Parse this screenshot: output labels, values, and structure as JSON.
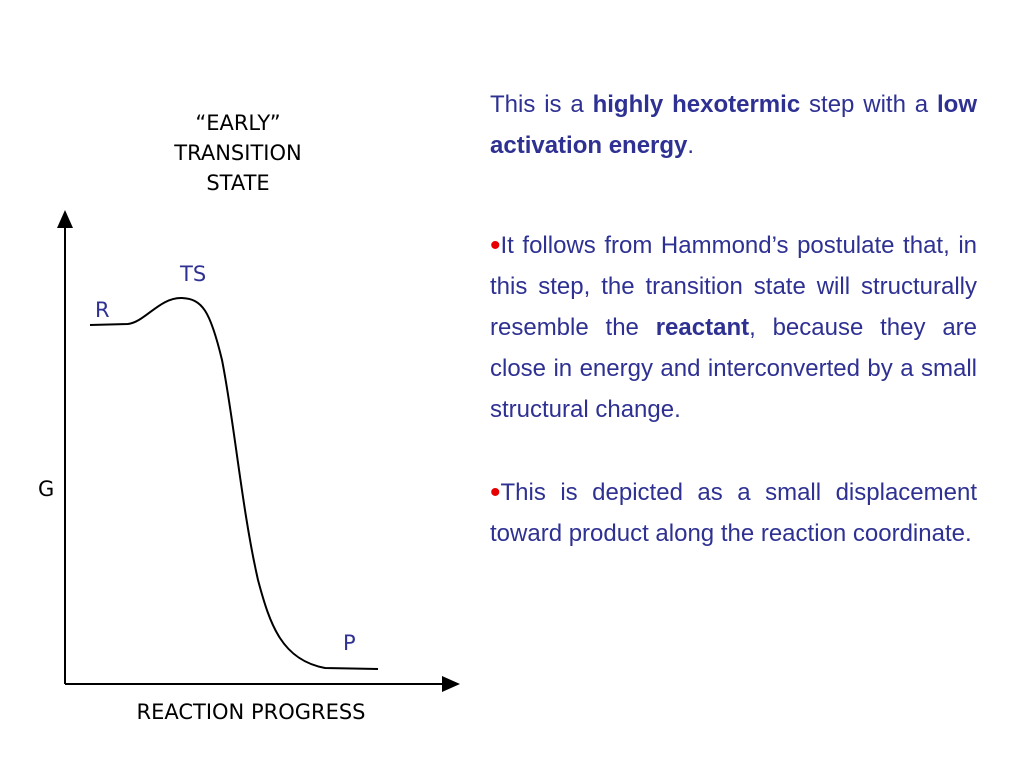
{
  "diagram": {
    "title_lines": [
      "“EARLY”",
      "TRANSITION",
      "STATE"
    ],
    "y_axis_label": "G",
    "x_axis_label": "REACTION PROGRESS",
    "labels": {
      "reactant": "R",
      "transition_state": "TS",
      "product": "P"
    }
  },
  "description": {
    "para1": {
      "t1": "This is a ",
      "b1": "highly hexotermic",
      "t2": " step with a ",
      "b2": "low activation energy",
      "t3": "."
    },
    "para2": {
      "bullet": "•",
      "t1": "It follows from Hammond’s postulate that, in this step, the transition state will structurally resemble the ",
      "b1": "reactant",
      "t2": ", because they are close in energy and interconverted by a small structural change."
    },
    "para3": {
      "bullet": "•",
      "t1": "This is depicted as a small displacement toward product along the reaction coordinate."
    }
  },
  "colors": {
    "text_blue": "#2e3192",
    "bullet_red": "#e60000",
    "axis_black": "#000000"
  }
}
